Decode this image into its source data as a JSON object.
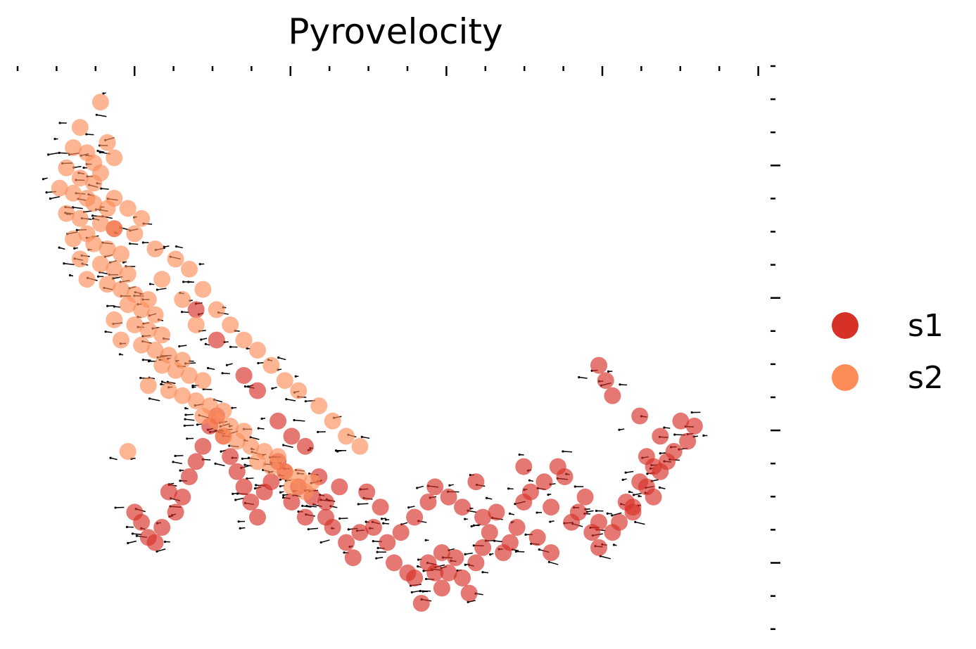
{
  "chart_data": {
    "type": "scatter",
    "title": "Pyrovelocity",
    "xlabel": "",
    "ylabel": "",
    "xlim": [
      0,
      1
    ],
    "ylim": [
      0,
      1
    ],
    "grid": false,
    "legend_position": "right",
    "arrows_overlay": true,
    "series": [
      {
        "name": "s1",
        "color": "#d73027",
        "points": [
          [
            0.86,
            0.37
          ],
          [
            0.89,
            0.33
          ],
          [
            0.94,
            0.35
          ],
          [
            0.92,
            0.36
          ],
          [
            0.93,
            0.32
          ],
          [
            0.87,
            0.29
          ],
          [
            0.88,
            0.27
          ],
          [
            0.89,
            0.26
          ],
          [
            0.9,
            0.28
          ],
          [
            0.91,
            0.3
          ],
          [
            0.86,
            0.24
          ],
          [
            0.84,
            0.2
          ],
          [
            0.85,
            0.18
          ],
          [
            0.87,
            0.23
          ],
          [
            0.88,
            0.21
          ],
          [
            0.82,
            0.14
          ],
          [
            0.83,
            0.16
          ],
          [
            0.85,
            0.19
          ],
          [
            0.8,
            0.11
          ],
          [
            0.77,
            0.18
          ],
          [
            0.79,
            0.14
          ],
          [
            0.8,
            0.16
          ],
          [
            0.78,
            0.21
          ],
          [
            0.76,
            0.16
          ],
          [
            0.75,
            0.25
          ],
          [
            0.74,
            0.27
          ],
          [
            0.72,
            0.24
          ],
          [
            0.73,
            0.19
          ],
          [
            0.7,
            0.22
          ],
          [
            0.69,
            0.27
          ],
          [
            0.69,
            0.2
          ],
          [
            0.68,
            0.15
          ],
          [
            0.67,
            0.12
          ],
          [
            0.71,
            0.13
          ],
          [
            0.73,
            0.1
          ],
          [
            0.65,
            0.18
          ],
          [
            0.64,
            0.14
          ],
          [
            0.63,
            0.11
          ],
          [
            0.62,
            0.08
          ],
          [
            0.6,
            0.05
          ],
          [
            0.59,
            0.09
          ],
          [
            0.58,
            0.06
          ],
          [
            0.61,
            0.02
          ],
          [
            0.57,
            0.03
          ],
          [
            0.56,
            0.06
          ],
          [
            0.54,
            0.0
          ],
          [
            0.53,
            0.05
          ],
          [
            0.52,
            0.06
          ],
          [
            0.5,
            0.08
          ],
          [
            0.49,
            0.12
          ],
          [
            0.47,
            0.15
          ],
          [
            0.45,
            0.14
          ],
          [
            0.44,
            0.09
          ],
          [
            0.43,
            0.12
          ],
          [
            0.41,
            0.15
          ],
          [
            0.4,
            0.17
          ],
          [
            0.4,
            0.2
          ],
          [
            0.38,
            0.21
          ],
          [
            0.37,
            0.17
          ],
          [
            0.36,
            0.23
          ],
          [
            0.35,
            0.2
          ],
          [
            0.34,
            0.26
          ],
          [
            0.33,
            0.28
          ],
          [
            0.32,
            0.24
          ],
          [
            0.31,
            0.22
          ],
          [
            0.3,
            0.17
          ],
          [
            0.29,
            0.2
          ],
          [
            0.28,
            0.23
          ],
          [
            0.27,
            0.26
          ],
          [
            0.26,
            0.29
          ],
          [
            0.25,
            0.33
          ],
          [
            0.24,
            0.37
          ],
          [
            0.23,
            0.35
          ],
          [
            0.22,
            0.31
          ],
          [
            0.21,
            0.28
          ],
          [
            0.2,
            0.25
          ],
          [
            0.19,
            0.21
          ],
          [
            0.18,
            0.18
          ],
          [
            0.17,
            0.22
          ],
          [
            0.16,
            0.15
          ],
          [
            0.15,
            0.12
          ],
          [
            0.14,
            0.13
          ],
          [
            0.13,
            0.16
          ],
          [
            0.12,
            0.18
          ],
          [
            0.58,
            0.21
          ],
          [
            0.56,
            0.23
          ],
          [
            0.55,
            0.2
          ],
          [
            0.53,
            0.17
          ],
          [
            0.51,
            0.14
          ],
          [
            0.48,
            0.19
          ],
          [
            0.46,
            0.22
          ],
          [
            0.42,
            0.23
          ],
          [
            0.39,
            0.25
          ],
          [
            0.37,
            0.31
          ],
          [
            0.35,
            0.33
          ],
          [
            0.33,
            0.36
          ],
          [
            0.3,
            0.42
          ],
          [
            0.28,
            0.45
          ],
          [
            0.24,
            0.52
          ],
          [
            0.21,
            0.58
          ],
          [
            0.09,
            0.74
          ],
          [
            0.81,
            0.44
          ],
          [
            0.82,
            0.41
          ],
          [
            0.8,
            0.47
          ],
          [
            0.62,
            0.24
          ],
          [
            0.6,
            0.19
          ],
          [
            0.63,
            0.17
          ],
          [
            0.66,
            0.1
          ],
          [
            0.55,
            0.08
          ],
          [
            0.57,
            0.1
          ]
        ]
      },
      {
        "name": "s2",
        "color": "#fc8d59",
        "points": [
          [
            0.07,
            0.99
          ],
          [
            0.04,
            0.94
          ],
          [
            0.08,
            0.91
          ],
          [
            0.03,
            0.9
          ],
          [
            0.05,
            0.89
          ],
          [
            0.06,
            0.87
          ],
          [
            0.02,
            0.86
          ],
          [
            0.07,
            0.85
          ],
          [
            0.04,
            0.84
          ],
          [
            0.01,
            0.82
          ],
          [
            0.03,
            0.81
          ],
          [
            0.05,
            0.8
          ],
          [
            0.06,
            0.79
          ],
          [
            0.08,
            0.78
          ],
          [
            0.02,
            0.77
          ],
          [
            0.04,
            0.76
          ],
          [
            0.07,
            0.75
          ],
          [
            0.09,
            0.74
          ],
          [
            0.05,
            0.73
          ],
          [
            0.03,
            0.72
          ],
          [
            0.06,
            0.71
          ],
          [
            0.08,
            0.7
          ],
          [
            0.1,
            0.69
          ],
          [
            0.04,
            0.68
          ],
          [
            0.07,
            0.67
          ],
          [
            0.09,
            0.66
          ],
          [
            0.11,
            0.65
          ],
          [
            0.05,
            0.64
          ],
          [
            0.08,
            0.63
          ],
          [
            0.1,
            0.62
          ],
          [
            0.12,
            0.61
          ],
          [
            0.14,
            0.6
          ],
          [
            0.11,
            0.59
          ],
          [
            0.13,
            0.58
          ],
          [
            0.15,
            0.57
          ],
          [
            0.09,
            0.56
          ],
          [
            0.12,
            0.55
          ],
          [
            0.14,
            0.54
          ],
          [
            0.16,
            0.53
          ],
          [
            0.1,
            0.52
          ],
          [
            0.13,
            0.51
          ],
          [
            0.15,
            0.5
          ],
          [
            0.17,
            0.49
          ],
          [
            0.19,
            0.48
          ],
          [
            0.16,
            0.47
          ],
          [
            0.18,
            0.46
          ],
          [
            0.2,
            0.45
          ],
          [
            0.22,
            0.44
          ],
          [
            0.14,
            0.43
          ],
          [
            0.17,
            0.42
          ],
          [
            0.19,
            0.41
          ],
          [
            0.21,
            0.4
          ],
          [
            0.23,
            0.39
          ],
          [
            0.25,
            0.38
          ],
          [
            0.22,
            0.37
          ],
          [
            0.24,
            0.36
          ],
          [
            0.26,
            0.35
          ],
          [
            0.28,
            0.34
          ],
          [
            0.25,
            0.33
          ],
          [
            0.27,
            0.32
          ],
          [
            0.29,
            0.31
          ],
          [
            0.31,
            0.3
          ],
          [
            0.33,
            0.29
          ],
          [
            0.3,
            0.28
          ],
          [
            0.32,
            0.27
          ],
          [
            0.34,
            0.26
          ],
          [
            0.36,
            0.25
          ],
          [
            0.38,
            0.24
          ],
          [
            0.35,
            0.23
          ],
          [
            0.37,
            0.22
          ],
          [
            0.11,
            0.3
          ],
          [
            0.06,
            0.83
          ],
          [
            0.09,
            0.8
          ],
          [
            0.11,
            0.78
          ],
          [
            0.13,
            0.76
          ],
          [
            0.15,
            0.7
          ],
          [
            0.18,
            0.68
          ],
          [
            0.2,
            0.66
          ],
          [
            0.22,
            0.62
          ],
          [
            0.24,
            0.58
          ],
          [
            0.26,
            0.55
          ],
          [
            0.28,
            0.52
          ],
          [
            0.3,
            0.5
          ],
          [
            0.32,
            0.47
          ],
          [
            0.34,
            0.44
          ],
          [
            0.36,
            0.42
          ],
          [
            0.39,
            0.39
          ],
          [
            0.41,
            0.36
          ],
          [
            0.43,
            0.33
          ],
          [
            0.45,
            0.31
          ],
          [
            0.09,
            0.88
          ],
          [
            0.12,
            0.73
          ],
          [
            0.16,
            0.64
          ],
          [
            0.19,
            0.6
          ],
          [
            0.21,
            0.55
          ]
        ]
      }
    ]
  }
}
